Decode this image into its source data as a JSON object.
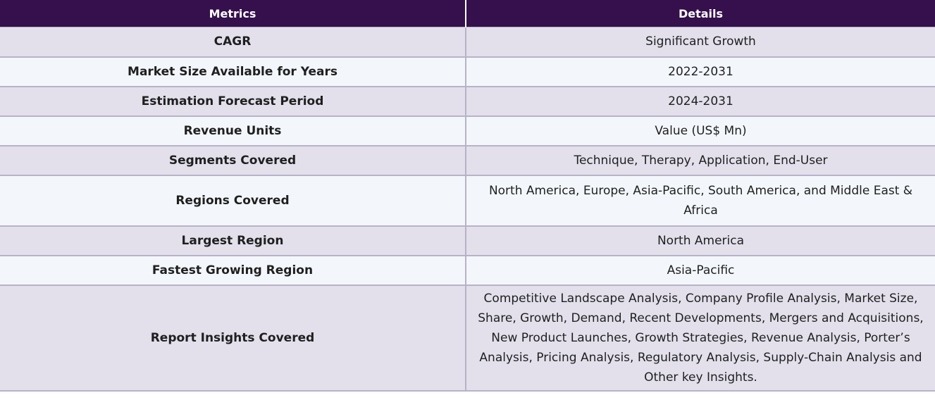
{
  "table": {
    "headers": {
      "metric": "Metrics",
      "detail": "Details"
    },
    "rows": [
      {
        "metric": "CAGR",
        "detail": "Significant Growth"
      },
      {
        "metric": "Market Size Available for Years",
        "detail": "2022-2031"
      },
      {
        "metric": "Estimation Forecast Period",
        "detail": "2024-2031"
      },
      {
        "metric": "Revenue Units",
        "detail": "Value (US$ Mn)"
      },
      {
        "metric": "Segments Covered",
        "detail": "Technique, Therapy, Application, End-User"
      },
      {
        "metric": "Regions Covered",
        "detail": "North America, Europe, Asia-Pacific, South America, and Middle East & Africa"
      },
      {
        "metric": "Largest Region",
        "detail": "North America"
      },
      {
        "metric": "Fastest Growing Region",
        "detail": "Asia-Pacific"
      },
      {
        "metric": "Report Insights Covered",
        "detail": "Competitive Landscape Analysis, Company Profile Analysis, Market Size, Share, Growth, Demand, Recent Developments, Mergers and Acquisitions, New Product Launches, Growth Strategies, Revenue Analysis, Porter’s Analysis, Pricing Analysis, Regulatory Analysis, Supply-Chain Analysis and Other key Insights."
      }
    ]
  }
}
